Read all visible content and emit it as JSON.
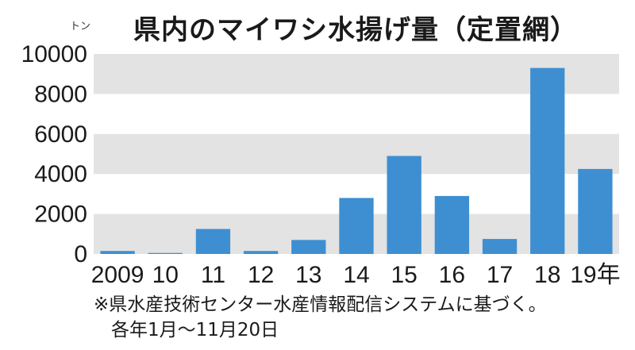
{
  "chart_data": {
    "type": "bar",
    "title": "県内のマイワシ水揚げ量（定置網）",
    "y_unit": "トン",
    "categories": [
      "2009",
      "10",
      "11",
      "12",
      "13",
      "14",
      "15",
      "16",
      "17",
      "18",
      "19年"
    ],
    "values": [
      150,
      50,
      1250,
      150,
      700,
      2800,
      4900,
      2900,
      750,
      9300,
      4250
    ],
    "ylim": [
      0,
      10000
    ],
    "yticks": [
      "0",
      "2000",
      "4000",
      "6000",
      "8000",
      "10000"
    ],
    "grid": "alternating horizontal bands",
    "colors": {
      "bar": "#3e8fd2",
      "band": "#e3e3e3"
    }
  },
  "notes": {
    "source": "※県水産技術センター水産情報配信システムに基づく。",
    "period": "各年1月～11月20日"
  }
}
